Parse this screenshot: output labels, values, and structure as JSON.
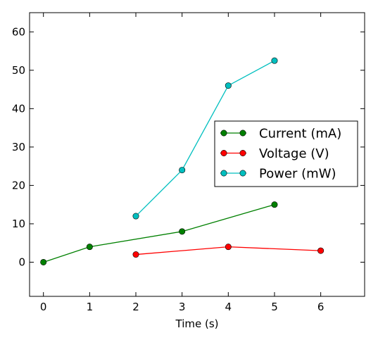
{
  "chart_data": {
    "type": "line",
    "title": "",
    "xlabel": "Time (s)",
    "ylabel": "",
    "xlim": [
      -0.3,
      6.95
    ],
    "ylim": [
      -8.9,
      65
    ],
    "xticks": [
      0,
      1,
      2,
      3,
      4,
      5,
      6
    ],
    "yticks": [
      0,
      10,
      20,
      30,
      40,
      50,
      60
    ],
    "grid": false,
    "legend_position": "center-right",
    "series": [
      {
        "name": "Current (mA)",
        "color": "#008000",
        "x": [
          0,
          1,
          3,
          5
        ],
        "y": [
          0,
          4,
          8,
          15
        ]
      },
      {
        "name": "Voltage (V)",
        "color": "#ff0000",
        "x": [
          2,
          4,
          6
        ],
        "y": [
          2,
          4,
          3
        ]
      },
      {
        "name": "Power (mW)",
        "color": "#00bfbf",
        "x": [
          2,
          3,
          4,
          5
        ],
        "y": [
          12,
          24,
          46,
          52.5
        ]
      }
    ]
  }
}
